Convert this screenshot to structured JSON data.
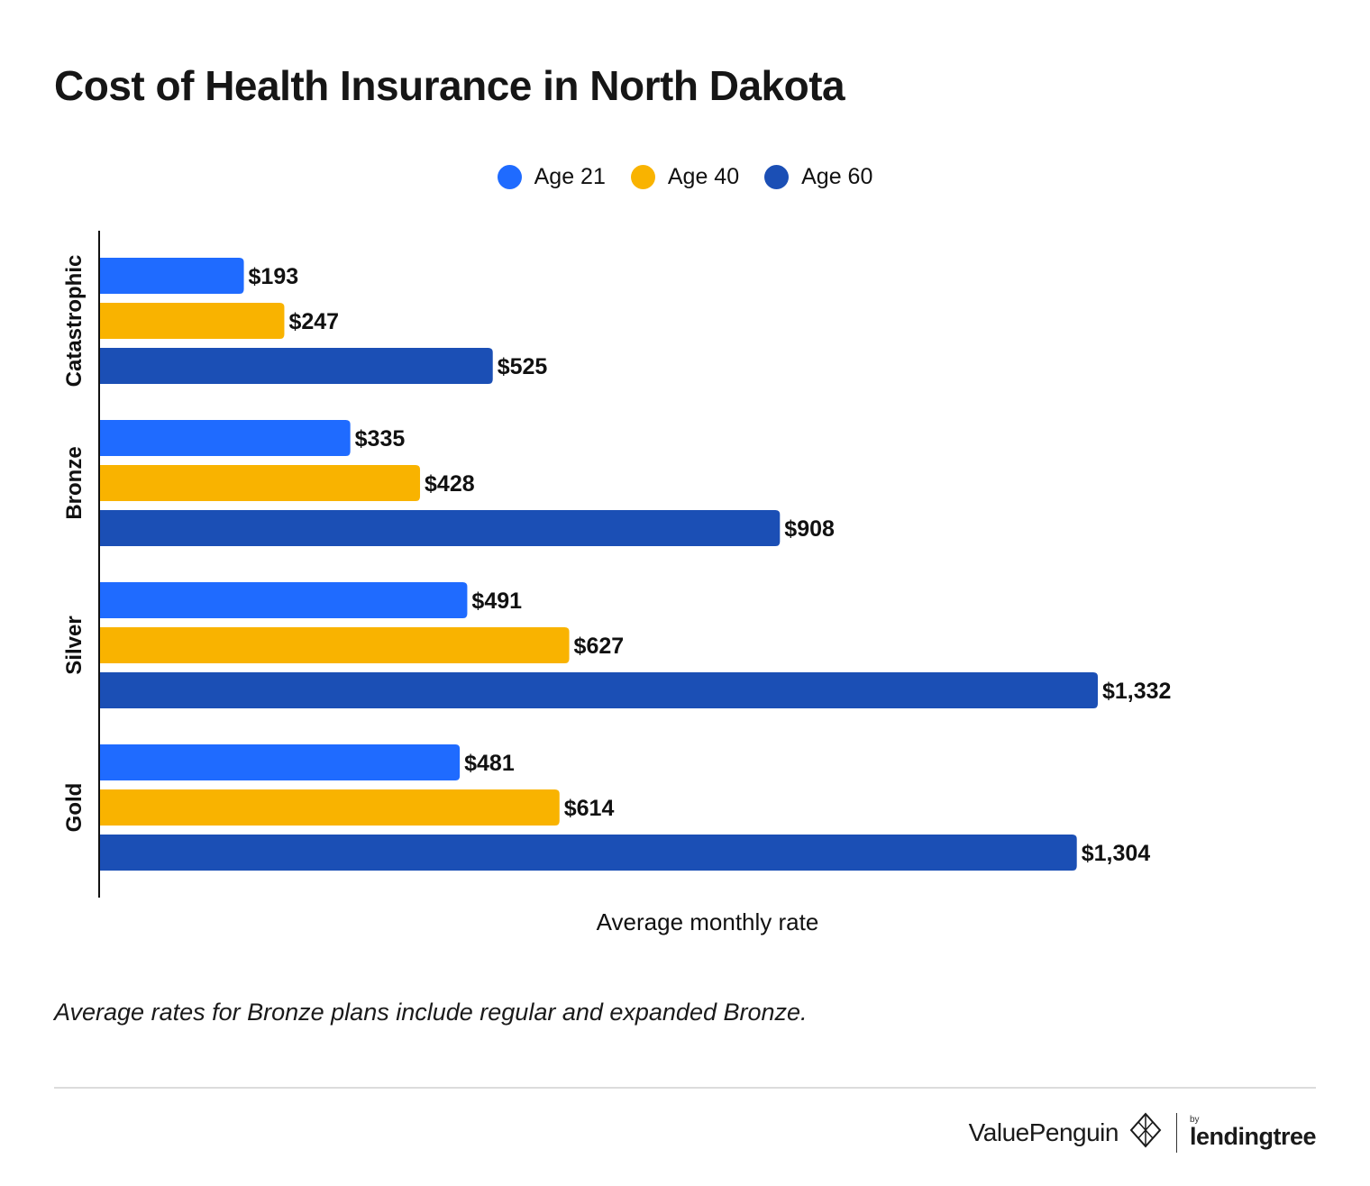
{
  "title": "Cost of Health Insurance in North Dakota",
  "note": "Average rates for Bronze plans include regular and expanded Bronze.",
  "brand": {
    "name": "ValuePenguin",
    "by": "by",
    "partner": "lendingtree"
  },
  "colors": {
    "age21": "#1f6bff",
    "age40": "#f9b300",
    "age60": "#1b4fb5"
  },
  "chart_data": {
    "type": "bar",
    "orientation": "horizontal",
    "categories": [
      "Catastrophic",
      "Bronze",
      "Silver",
      "Gold"
    ],
    "series": [
      {
        "name": "Age 21",
        "color": "#1f6bff",
        "values": [
          193,
          335,
          491,
          481
        ],
        "labels": [
          "$193",
          "$335",
          "$491",
          "$481"
        ]
      },
      {
        "name": "Age 40",
        "color": "#f9b300",
        "values": [
          247,
          428,
          627,
          614
        ],
        "labels": [
          "$247",
          "$428",
          "$627",
          "$614"
        ]
      },
      {
        "name": "Age 60",
        "color": "#1b4fb5",
        "values": [
          525,
          908,
          1332,
          1304
        ],
        "labels": [
          "$525",
          "$908",
          "$1,332",
          "$1,304"
        ]
      }
    ],
    "xlabel": "Average monthly rate",
    "ylabel": "",
    "xlim": [
      0,
      1332
    ],
    "legend_position": "top-center",
    "grid": false,
    "data_labels": true
  }
}
